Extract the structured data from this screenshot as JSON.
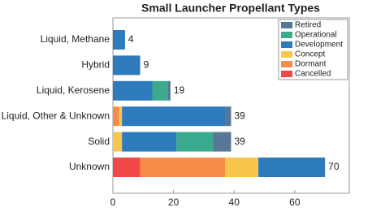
{
  "chart_data": {
    "type": "stacked-barh",
    "title": "Small Launcher Propellant Types",
    "categories": [
      "Liquid, Methane",
      "Hybrid",
      "Liquid, Kerosene",
      "Liquid, Other & Unknown",
      "Solid",
      "Unknown"
    ],
    "series": [
      {
        "name": "Retired",
        "color": "#587695",
        "values": [
          0,
          0,
          1,
          2,
          6,
          0
        ]
      },
      {
        "name": "Operational",
        "color": "#3caa8c",
        "values": [
          0,
          0,
          5,
          0,
          12,
          0
        ]
      },
      {
        "name": "Development",
        "color": "#2d7abd",
        "values": [
          4,
          9,
          13,
          34,
          18,
          22
        ]
      },
      {
        "name": "Concept",
        "color": "#f8c64c",
        "values": [
          0,
          0,
          0,
          1,
          3,
          11
        ]
      },
      {
        "name": "Dormant",
        "color": "#f68b4a",
        "values": [
          0,
          0,
          0,
          2,
          0,
          28
        ]
      },
      {
        "name": "Cancelled",
        "color": "#f04848",
        "values": [
          0,
          0,
          0,
          0,
          0,
          9
        ]
      }
    ],
    "stack_order": [
      "Cancelled",
      "Dormant",
      "Concept",
      "Development",
      "Operational",
      "Retired"
    ],
    "totals": [
      4,
      9,
      19,
      39,
      39,
      70
    ],
    "xlim": [
      0,
      78
    ],
    "xticks": [
      0,
      20,
      40,
      60
    ],
    "legend": "upper right"
  }
}
